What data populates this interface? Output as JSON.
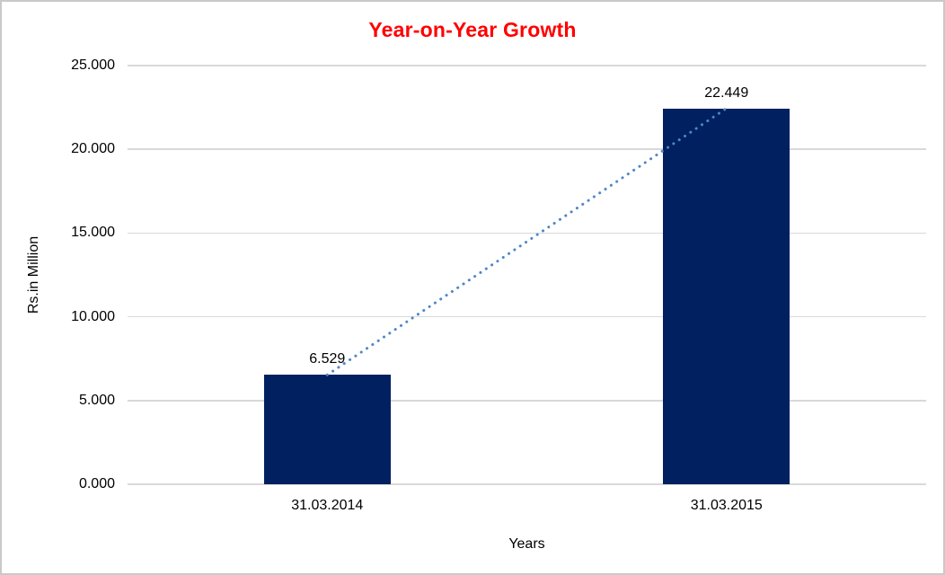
{
  "window": {
    "background": "#ffffff",
    "border_color": "#c9c9c9"
  },
  "chart_data": {
    "type": "bar",
    "title": "Year-on-Year Growth",
    "title_color": "#ff0000",
    "xlabel": "Years",
    "ylabel": "Rs.in Million",
    "categories": [
      "31.03.2014",
      "31.03.2015"
    ],
    "values": [
      6.529,
      22.449
    ],
    "value_labels": [
      "6.529",
      "22.449"
    ],
    "ylim": [
      0,
      25
    ],
    "yticks": [
      0,
      5,
      10,
      15,
      20,
      25
    ],
    "ytick_labels": [
      "0.000",
      "5.000",
      "10.000",
      "15.000",
      "20.000",
      "25.000"
    ],
    "grid": true,
    "gridline_color": "#d9d9d9",
    "bar_color": "#002060",
    "text_color": "#000000",
    "legend": "none",
    "trendline": {
      "style": "dotted",
      "color": "#4f86c6",
      "connects": "bar tops"
    }
  }
}
